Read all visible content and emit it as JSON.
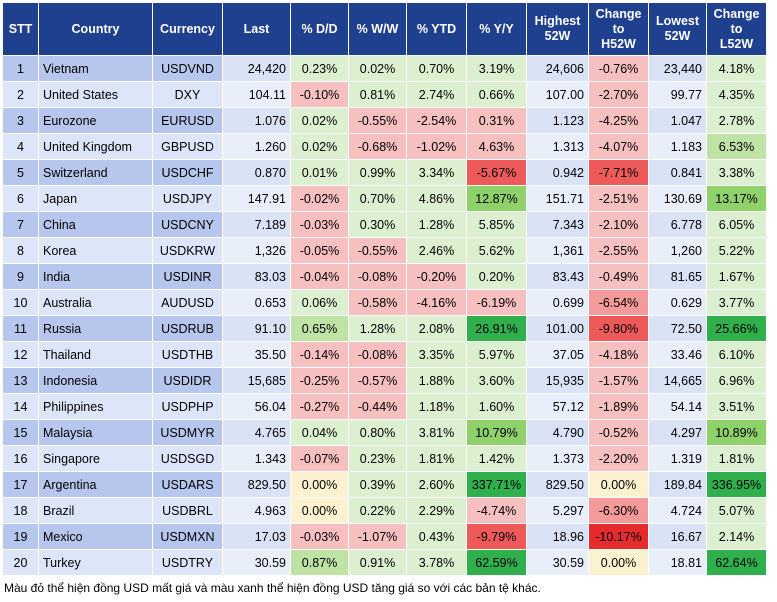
{
  "headers": {
    "stt": "STT",
    "country": "Country",
    "currency": "Currency",
    "last": "Last",
    "dd": "% D/D",
    "ww": "% W/W",
    "ytd": "% YTD",
    "yy": "% Y/Y",
    "high52": [
      "Highest",
      "52W"
    ],
    "chg_high": [
      "Change",
      "to",
      "H52W"
    ],
    "low52": [
      "Lowest",
      "52W"
    ],
    "chg_low": [
      "Change",
      "to",
      "L52W"
    ]
  },
  "colors": {
    "header_bg": "#1f3f8f",
    "red_light": "#f7c0c0",
    "red_medium": "#f59a9a",
    "red_strong": "#ee5a5a",
    "red_deep": "#e52b2b",
    "green_light": "#dcefd0",
    "green_medium": "#bfe3a4",
    "green_strong": "#8fd16a",
    "green_deep": "#2fb04d",
    "neutral": "#fdf2cf"
  },
  "rows": [
    {
      "stt": "1",
      "country": "Vietnam",
      "currency": "USDVND",
      "last": "24,420",
      "dd": "0.23%",
      "ww": "0.02%",
      "ytd": "0.70%",
      "yy": "3.19%",
      "high52": "24,606",
      "chg_high": "-0.76%",
      "low52": "23,440",
      "chg_low": "4.18%",
      "c": [
        "gl",
        "gl",
        "gl",
        "gl",
        "",
        "rl",
        "",
        "gl"
      ]
    },
    {
      "stt": "2",
      "country": "United States",
      "currency": "DXY",
      "last": "104.11",
      "dd": "-0.10%",
      "ww": "0.81%",
      "ytd": "2.74%",
      "yy": "0.66%",
      "high52": "107.00",
      "chg_high": "-2.70%",
      "low52": "99.77",
      "chg_low": "4.35%",
      "c": [
        "rl",
        "gl",
        "gl",
        "gl",
        "",
        "rl",
        "",
        "gl"
      ]
    },
    {
      "stt": "3",
      "country": "Eurozone",
      "currency": "EURUSD",
      "last": "1.076",
      "dd": "0.02%",
      "ww": "-0.55%",
      "ytd": "-2.54%",
      "yy": "0.31%",
      "high52": "1.123",
      "chg_high": "-4.25%",
      "low52": "1.047",
      "chg_low": "2.78%",
      "c": [
        "gl",
        "rl",
        "rl",
        "rl",
        "",
        "rl",
        "",
        "gl"
      ]
    },
    {
      "stt": "4",
      "country": "United Kingdom",
      "currency": "GBPUSD",
      "last": "1.260",
      "dd": "0.02%",
      "ww": "-0.68%",
      "ytd": "-1.02%",
      "yy": "4.63%",
      "high52": "1.313",
      "chg_high": "-4.07%",
      "low52": "1.183",
      "chg_low": "6.53%",
      "c": [
        "gl",
        "rl",
        "rl",
        "rl",
        "",
        "rl",
        "",
        "gm"
      ]
    },
    {
      "stt": "5",
      "country": "Switzerland",
      "currency": "USDCHF",
      "last": "0.870",
      "dd": "0.01%",
      "ww": "0.99%",
      "ytd": "3.34%",
      "yy": "-5.67%",
      "high52": "0.942",
      "chg_high": "-7.71%",
      "low52": "0.841",
      "chg_low": "3.38%",
      "c": [
        "gl",
        "gl",
        "gl",
        "rs",
        "",
        "rs",
        "",
        "gl"
      ]
    },
    {
      "stt": "6",
      "country": "Japan",
      "currency": "USDJPY",
      "last": "147.91",
      "dd": "-0.02%",
      "ww": "0.70%",
      "ytd": "4.86%",
      "yy": "12.87%",
      "high52": "151.71",
      "chg_high": "-2.51%",
      "low52": "130.69",
      "chg_low": "13.17%",
      "c": [
        "rl",
        "gl",
        "gl",
        "gs",
        "",
        "rl",
        "",
        "gs"
      ]
    },
    {
      "stt": "7",
      "country": "China",
      "currency": "USDCNY",
      "last": "7.189",
      "dd": "-0.03%",
      "ww": "0.30%",
      "ytd": "1.28%",
      "yy": "5.85%",
      "high52": "7.343",
      "chg_high": "-2.10%",
      "low52": "6.778",
      "chg_low": "6.05%",
      "c": [
        "rl",
        "gl",
        "gl",
        "gl",
        "",
        "rl",
        "",
        "gl"
      ]
    },
    {
      "stt": "8",
      "country": "Korea",
      "currency": "USDKRW",
      "last": "1,326",
      "dd": "-0.05%",
      "ww": "-0.55%",
      "ytd": "2.46%",
      "yy": "5.62%",
      "high52": "1,361",
      "chg_high": "-2.55%",
      "low52": "1,260",
      "chg_low": "5.22%",
      "c": [
        "rl",
        "rl",
        "gl",
        "gl",
        "",
        "rl",
        "",
        "gl"
      ]
    },
    {
      "stt": "9",
      "country": "India",
      "currency": "USDINR",
      "last": "83.03",
      "dd": "-0.04%",
      "ww": "-0.08%",
      "ytd": "-0.20%",
      "yy": "0.20%",
      "high52": "83.43",
      "chg_high": "-0.49%",
      "low52": "81.65",
      "chg_low": "1.67%",
      "c": [
        "rl",
        "rl",
        "rl",
        "gl",
        "",
        "rl",
        "",
        "gl"
      ]
    },
    {
      "stt": "10",
      "country": "Australia",
      "currency": "AUDUSD",
      "last": "0.653",
      "dd": "0.06%",
      "ww": "-0.58%",
      "ytd": "-4.16%",
      "yy": "-6.19%",
      "high52": "0.699",
      "chg_high": "-6.54%",
      "low52": "0.629",
      "chg_low": "3.77%",
      "c": [
        "gl",
        "rl",
        "rl",
        "rl",
        "",
        "rm",
        "",
        "gl"
      ]
    },
    {
      "stt": "11",
      "country": "Russia",
      "currency": "USDRUB",
      "last": "91.10",
      "dd": "0.65%",
      "ww": "1.28%",
      "ytd": "2.08%",
      "yy": "26.91%",
      "high52": "101.00",
      "chg_high": "-9.80%",
      "low52": "72.50",
      "chg_low": "25.66%",
      "c": [
        "gm",
        "gl",
        "gl",
        "gd",
        "",
        "rs",
        "",
        "gd"
      ]
    },
    {
      "stt": "12",
      "country": "Thailand",
      "currency": "USDTHB",
      "last": "35.50",
      "dd": "-0.14%",
      "ww": "-0.08%",
      "ytd": "3.35%",
      "yy": "5.97%",
      "high52": "37.05",
      "chg_high": "-4.18%",
      "low52": "33.46",
      "chg_low": "6.10%",
      "c": [
        "rl",
        "rl",
        "gl",
        "gl",
        "",
        "rl",
        "",
        "gl"
      ]
    },
    {
      "stt": "13",
      "country": "Indonesia",
      "currency": "USDIDR",
      "last": "15,685",
      "dd": "-0.25%",
      "ww": "-0.57%",
      "ytd": "1.88%",
      "yy": "3.60%",
      "high52": "15,935",
      "chg_high": "-1.57%",
      "low52": "14,665",
      "chg_low": "6.96%",
      "c": [
        "rl",
        "rl",
        "gl",
        "gl",
        "",
        "rl",
        "",
        "gl"
      ]
    },
    {
      "stt": "14",
      "country": "Philippines",
      "currency": "USDPHP",
      "last": "56.04",
      "dd": "-0.27%",
      "ww": "-0.44%",
      "ytd": "1.18%",
      "yy": "1.60%",
      "high52": "57.12",
      "chg_high": "-1.89%",
      "low52": "54.14",
      "chg_low": "3.51%",
      "c": [
        "rl",
        "rl",
        "gl",
        "gl",
        "",
        "rl",
        "",
        "gl"
      ]
    },
    {
      "stt": "15",
      "country": "Malaysia",
      "currency": "USDMYR",
      "last": "4.765",
      "dd": "0.04%",
      "ww": "0.80%",
      "ytd": "3.81%",
      "yy": "10.79%",
      "high52": "4.790",
      "chg_high": "-0.52%",
      "low52": "4.297",
      "chg_low": "10.89%",
      "c": [
        "gl",
        "gl",
        "gl",
        "gs",
        "",
        "rl",
        "",
        "gs"
      ]
    },
    {
      "stt": "16",
      "country": "Singapore",
      "currency": "USDSGD",
      "last": "1.343",
      "dd": "-0.07%",
      "ww": "0.23%",
      "ytd": "1.81%",
      "yy": "1.42%",
      "high52": "1.373",
      "chg_high": "-2.20%",
      "low52": "1.319",
      "chg_low": "1.81%",
      "c": [
        "rl",
        "gl",
        "gl",
        "gl",
        "",
        "rl",
        "",
        "gl"
      ]
    },
    {
      "stt": "17",
      "country": "Argentina",
      "currency": "USDARS",
      "last": "829.50",
      "dd": "0.00%",
      "ww": "0.39%",
      "ytd": "2.60%",
      "yy": "337.71%",
      "high52": "829.50",
      "chg_high": "0.00%",
      "low52": "189.84",
      "chg_low": "336.95%",
      "c": [
        "n",
        "gl",
        "gl",
        "gd",
        "",
        "n",
        "",
        "gd"
      ]
    },
    {
      "stt": "18",
      "country": "Brazil",
      "currency": "USDBRL",
      "last": "4.963",
      "dd": "0.00%",
      "ww": "0.22%",
      "ytd": "2.29%",
      "yy": "-4.74%",
      "high52": "5.297",
      "chg_high": "-6.30%",
      "low52": "4.724",
      "chg_low": "5.07%",
      "c": [
        "n",
        "gl",
        "gl",
        "rl",
        "",
        "rm",
        "",
        "gl"
      ]
    },
    {
      "stt": "19",
      "country": "Mexico",
      "currency": "USDMXN",
      "last": "17.03",
      "dd": "-0.03%",
      "ww": "-1.07%",
      "ytd": "0.43%",
      "yy": "-9.79%",
      "high52": "18.96",
      "chg_high": "-10.17%",
      "low52": "16.67",
      "chg_low": "2.14%",
      "c": [
        "rl",
        "rl",
        "gl",
        "rs",
        "",
        "rd",
        "",
        "gl"
      ]
    },
    {
      "stt": "20",
      "country": "Turkey",
      "currency": "USDTRY",
      "last": "30.59",
      "dd": "0.87%",
      "ww": "0.91%",
      "ytd": "3.78%",
      "yy": "62.59%",
      "high52": "30.59",
      "chg_high": "0.00%",
      "low52": "18.81",
      "chg_low": "62.64%",
      "c": [
        "gm",
        "gl",
        "gl",
        "gd",
        "",
        "n",
        "",
        "gd"
      ]
    }
  ],
  "note": "Màu đỏ thể hiện đồng USD mất giá và màu xanh thể hiện đồng USD tăng giá so với các bản tệ khác."
}
